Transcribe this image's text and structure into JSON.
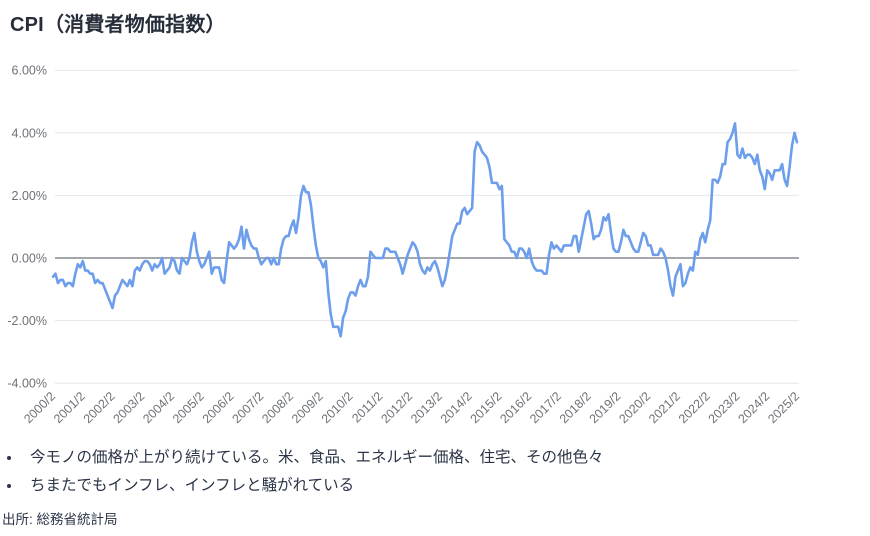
{
  "title": "CPI（消費者物価指数）",
  "bullets": [
    "今モノの価格が上がり続けている。米、食品、エネルギー価格、住宅、その他色々",
    "ちまたでもインフレ、インフレと騒がれている"
  ],
  "source": "出所: 総務省統計局",
  "colors": {
    "line": "#6d9eeb",
    "grid": "#e7e7e7",
    "zero_line": "#868b93",
    "axis_text": "#6e7277",
    "title_text": "#272e3a",
    "body_text": "#2b3547"
  },
  "chart_data": {
    "type": "line",
    "title": "CPI（消費者物価指数）",
    "unit": "percent_yoy",
    "frequency": "monthly",
    "x_start": "2000/2",
    "x_end": "2025/2",
    "ylim": [
      -4,
      6
    ],
    "grid": true,
    "legend": false,
    "y_ticks": [
      6,
      4,
      2,
      0,
      -2,
      -4
    ],
    "y_tick_labels": [
      "6.00%",
      "4.00%",
      "2.00%",
      "0.00%",
      "-2.00%",
      "-4.00%"
    ],
    "x_tick_labels": [
      "2000/2",
      "2001/2",
      "2002/2",
      "2003/2",
      "2004/2",
      "2005/2",
      "2006/2",
      "2007/2",
      "2008/2",
      "2009/2",
      "2010/2",
      "2011/2",
      "2012/2",
      "2013/2",
      "2014/2",
      "2015/2",
      "2016/2",
      "2017/2",
      "2018/2",
      "2019/2",
      "2020/2",
      "2021/2",
      "2022/2",
      "2023/2",
      "2024/2",
      "2025/2"
    ],
    "x_tick_every_n_points": 12,
    "values": [
      -0.6,
      -0.5,
      -0.8,
      -0.7,
      -0.7,
      -0.9,
      -0.8,
      -0.8,
      -0.9,
      -0.5,
      -0.2,
      -0.3,
      -0.1,
      -0.4,
      -0.4,
      -0.5,
      -0.5,
      -0.8,
      -0.7,
      -0.8,
      -0.8,
      -1.0,
      -1.2,
      -1.4,
      -1.6,
      -1.2,
      -1.1,
      -0.9,
      -0.7,
      -0.8,
      -0.9,
      -0.7,
      -0.9,
      -0.4,
      -0.3,
      -0.4,
      -0.2,
      -0.1,
      -0.1,
      -0.2,
      -0.4,
      -0.2,
      -0.3,
      -0.2,
      0.0,
      -0.5,
      -0.4,
      -0.3,
      0.0,
      -0.1,
      -0.4,
      -0.5,
      0.0,
      -0.1,
      -0.2,
      0.0,
      0.5,
      0.8,
      0.2,
      -0.1,
      -0.3,
      -0.2,
      0.0,
      0.2,
      -0.5,
      -0.3,
      -0.3,
      -0.3,
      -0.7,
      -0.8,
      -0.1,
      0.5,
      0.4,
      0.3,
      0.4,
      0.6,
      1.0,
      0.3,
      0.9,
      0.6,
      0.4,
      0.3,
      0.3,
      0.0,
      -0.2,
      -0.1,
      0.0,
      0.0,
      -0.2,
      0.0,
      -0.2,
      -0.2,
      0.3,
      0.6,
      0.7,
      0.7,
      1.0,
      1.2,
      0.8,
      1.3,
      2.0,
      2.3,
      2.1,
      2.1,
      1.7,
      1.0,
      0.4,
      0.0,
      -0.1,
      -0.3,
      -0.1,
      -1.1,
      -1.8,
      -2.2,
      -2.2,
      -2.2,
      -2.5,
      -1.9,
      -1.7,
      -1.3,
      -1.1,
      -1.1,
      -1.2,
      -0.9,
      -0.7,
      -0.9,
      -0.9,
      -0.6,
      0.2,
      0.1,
      0.0,
      0.0,
      0.0,
      0.0,
      0.3,
      0.3,
      0.2,
      0.2,
      0.2,
      0.0,
      -0.2,
      -0.5,
      -0.2,
      0.1,
      0.3,
      0.5,
      0.4,
      0.2,
      -0.2,
      -0.4,
      -0.5,
      -0.3,
      -0.4,
      -0.2,
      -0.1,
      -0.3,
      -0.6,
      -0.9,
      -0.7,
      -0.3,
      0.2,
      0.7,
      0.9,
      1.1,
      1.1,
      1.5,
      1.6,
      1.4,
      1.5,
      1.6,
      3.4,
      3.7,
      3.6,
      3.4,
      3.3,
      3.2,
      2.9,
      2.4,
      2.4,
      2.4,
      2.2,
      2.3,
      0.6,
      0.5,
      0.4,
      0.2,
      0.2,
      0.0,
      0.3,
      0.3,
      0.2,
      0.0,
      0.3,
      -0.1,
      -0.3,
      -0.4,
      -0.4,
      -0.4,
      -0.5,
      -0.5,
      0.1,
      0.5,
      0.3,
      0.4,
      0.3,
      0.2,
      0.4,
      0.4,
      0.4,
      0.4,
      0.7,
      0.7,
      0.2,
      0.6,
      1.0,
      1.4,
      1.5,
      1.1,
      0.6,
      0.7,
      0.7,
      0.9,
      1.3,
      1.2,
      1.4,
      0.8,
      0.3,
      0.2,
      0.2,
      0.5,
      0.9,
      0.7,
      0.7,
      0.5,
      0.3,
      0.2,
      0.2,
      0.5,
      0.8,
      0.7,
      0.4,
      0.4,
      0.1,
      0.1,
      0.1,
      0.3,
      0.2,
      0.0,
      -0.4,
      -0.9,
      -1.2,
      -0.6,
      -0.4,
      -0.2,
      -0.9,
      -0.8,
      -0.5,
      -0.3,
      -0.4,
      0.2,
      0.1,
      0.6,
      0.8,
      0.5,
      0.9,
      1.2,
      2.5,
      2.5,
      2.4,
      2.6,
      3.0,
      3.0,
      3.7,
      3.8,
      4.0,
      4.3,
      3.3,
      3.2,
      3.5,
      3.2,
      3.3,
      3.3,
      3.2,
      3.0,
      3.3,
      2.8,
      2.6,
      2.2,
      2.8,
      2.7,
      2.5,
      2.8,
      2.8,
      2.8,
      3.0,
      2.5,
      2.3,
      2.9,
      3.6,
      4.0,
      3.7
    ]
  }
}
